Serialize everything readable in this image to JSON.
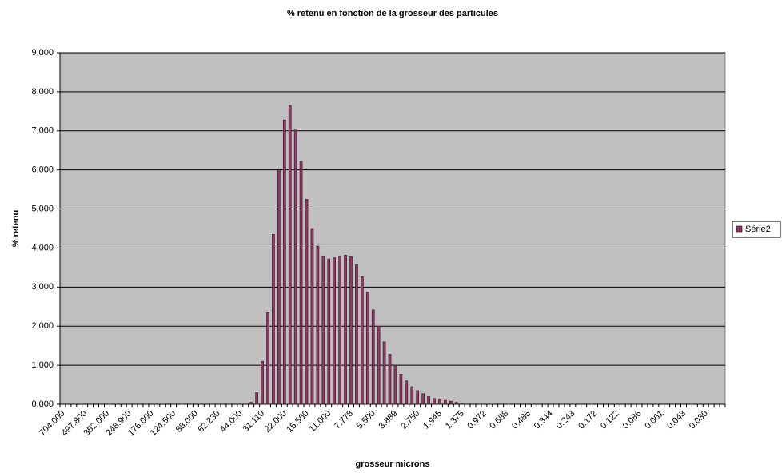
{
  "chart_data": {
    "type": "bar",
    "title": "% retenu en fonction de la grosseur des particules",
    "xlabel": "grosseur microns",
    "ylabel": "% retenu",
    "categories": [
      "704.000",
      null,
      null,
      null,
      "497.800",
      null,
      null,
      null,
      "352.000",
      null,
      null,
      null,
      "248.900",
      null,
      null,
      null,
      "176.000",
      null,
      null,
      null,
      "124.500",
      null,
      null,
      null,
      "88.000",
      null,
      null,
      null,
      "62.230",
      null,
      null,
      null,
      "44.000",
      null,
      null,
      null,
      "31.110",
      null,
      null,
      null,
      "22.000",
      null,
      null,
      null,
      "15.560",
      null,
      null,
      null,
      "11.000",
      null,
      null,
      null,
      "7.778",
      null,
      null,
      null,
      "5.500",
      null,
      null,
      null,
      "3.889",
      null,
      null,
      null,
      "2.750",
      null,
      null,
      null,
      "1.945",
      null,
      null,
      null,
      "1.375",
      null,
      null,
      null,
      "0.972",
      null,
      null,
      null,
      "0.688",
      null,
      null,
      null,
      "0.486",
      null,
      null,
      null,
      "0.344",
      null,
      null,
      null,
      "0.243",
      null,
      null,
      null,
      "0.172",
      null,
      null,
      null,
      "0.122",
      null,
      null,
      null,
      "0.086",
      null,
      null,
      null,
      "0.061",
      null,
      null,
      null,
      "0.043",
      null,
      null,
      null,
      "0.030",
      null,
      null,
      null
    ],
    "series": [
      {
        "name": "Série2",
        "color": "#993366",
        "values": [
          0,
          0,
          0,
          0,
          0,
          0,
          0,
          0,
          0,
          0,
          0,
          0,
          0,
          0,
          0,
          0,
          0,
          0,
          0,
          0,
          0,
          0,
          0,
          0,
          0,
          0,
          0,
          0,
          0,
          0,
          0,
          0,
          0,
          0,
          0.05,
          0.3,
          1.1,
          2.35,
          4.35,
          6.0,
          7.28,
          7.65,
          7.02,
          6.22,
          5.25,
          4.5,
          4.05,
          3.8,
          3.72,
          3.75,
          3.8,
          3.82,
          3.78,
          3.58,
          3.27,
          2.87,
          2.42,
          2.0,
          1.6,
          1.28,
          1.0,
          0.77,
          0.6,
          0.45,
          0.35,
          0.27,
          0.2,
          0.15,
          0.13,
          0.1,
          0.08,
          0.05,
          0.03,
          0,
          0,
          0,
          0,
          0,
          0,
          0,
          0,
          0,
          0,
          0,
          0,
          0,
          0,
          0,
          0,
          0,
          0,
          0,
          0,
          0,
          0,
          0,
          0,
          0,
          0,
          0,
          0,
          0,
          0,
          0,
          0,
          0,
          0,
          0,
          0,
          0,
          0,
          0,
          0,
          0,
          0,
          0,
          0,
          0,
          0,
          0
        ]
      }
    ],
    "ylim": [
      0,
      9
    ],
    "yticks": [
      {
        "value": 0,
        "label": "0,000"
      },
      {
        "value": 1,
        "label": "1,000"
      },
      {
        "value": 2,
        "label": "2,000"
      },
      {
        "value": 3,
        "label": "3,000"
      },
      {
        "value": 4,
        "label": "4,000"
      },
      {
        "value": 5,
        "label": "5,000"
      },
      {
        "value": 6,
        "label": "6,000"
      },
      {
        "value": 7,
        "label": "7,000"
      },
      {
        "value": 8,
        "label": "8,000"
      },
      {
        "value": 9,
        "label": "9,000"
      }
    ],
    "grid": true,
    "legend": "right",
    "plot_background": "#c0c0c0"
  }
}
